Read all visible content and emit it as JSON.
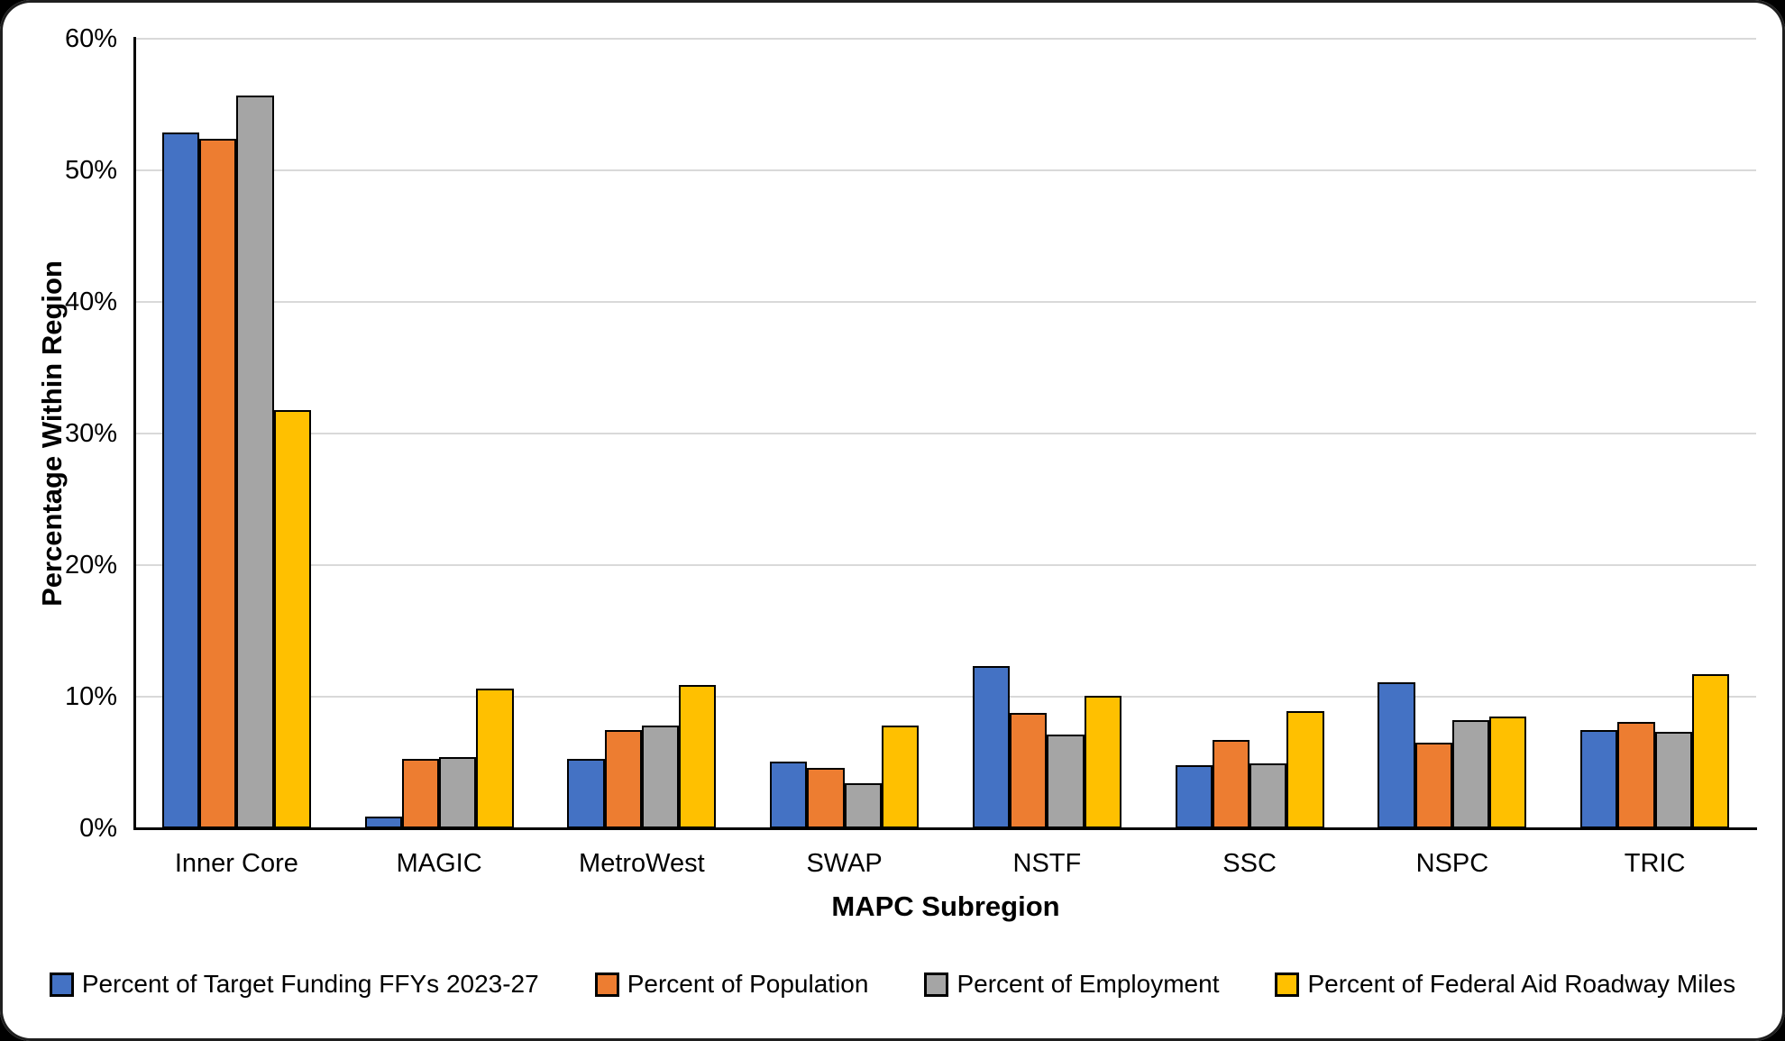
{
  "chart_data": {
    "type": "bar",
    "title": "",
    "xlabel": "MAPC Subregion",
    "ylabel": "Percentage Within Region",
    "categories": [
      "Inner Core",
      "MAGIC",
      "MetroWest",
      "SWAP",
      "NSTF",
      "SSC",
      "NSPC",
      "TRIC"
    ],
    "series": [
      {
        "name": "Percent of Target Funding FFYs 2023-27",
        "color": "#4472C4",
        "values": [
          52.9,
          0.9,
          5.3,
          5.1,
          12.3,
          4.8,
          11.1,
          7.5
        ]
      },
      {
        "name": "Percent of Population",
        "color": "#ED7D31",
        "values": [
          52.4,
          5.3,
          7.5,
          4.6,
          8.8,
          6.7,
          6.5,
          8.1
        ]
      },
      {
        "name": "Percent of Employment",
        "color": "#A5A5A5",
        "values": [
          55.7,
          5.4,
          7.8,
          3.4,
          7.1,
          4.9,
          8.2,
          7.3
        ]
      },
      {
        "name": "Percent of Federal Aid Roadway Miles",
        "color": "#FFC000",
        "values": [
          31.8,
          10.6,
          10.9,
          7.8,
          10.1,
          8.9,
          8.5,
          11.7
        ]
      }
    ],
    "ylim": [
      0,
      60
    ],
    "ytick_step": 10,
    "ytick_labels": [
      "0%",
      "10%",
      "20%",
      "30%",
      "40%",
      "50%",
      "60%"
    ],
    "grid": true,
    "legend_position": "bottom"
  },
  "colors": {
    "gridline": "#D9D9D9",
    "axis": "#000000",
    "bar_border": "#000000",
    "frame": "#1F1F1F",
    "background": "#FFFFFF",
    "text": "#000000"
  }
}
